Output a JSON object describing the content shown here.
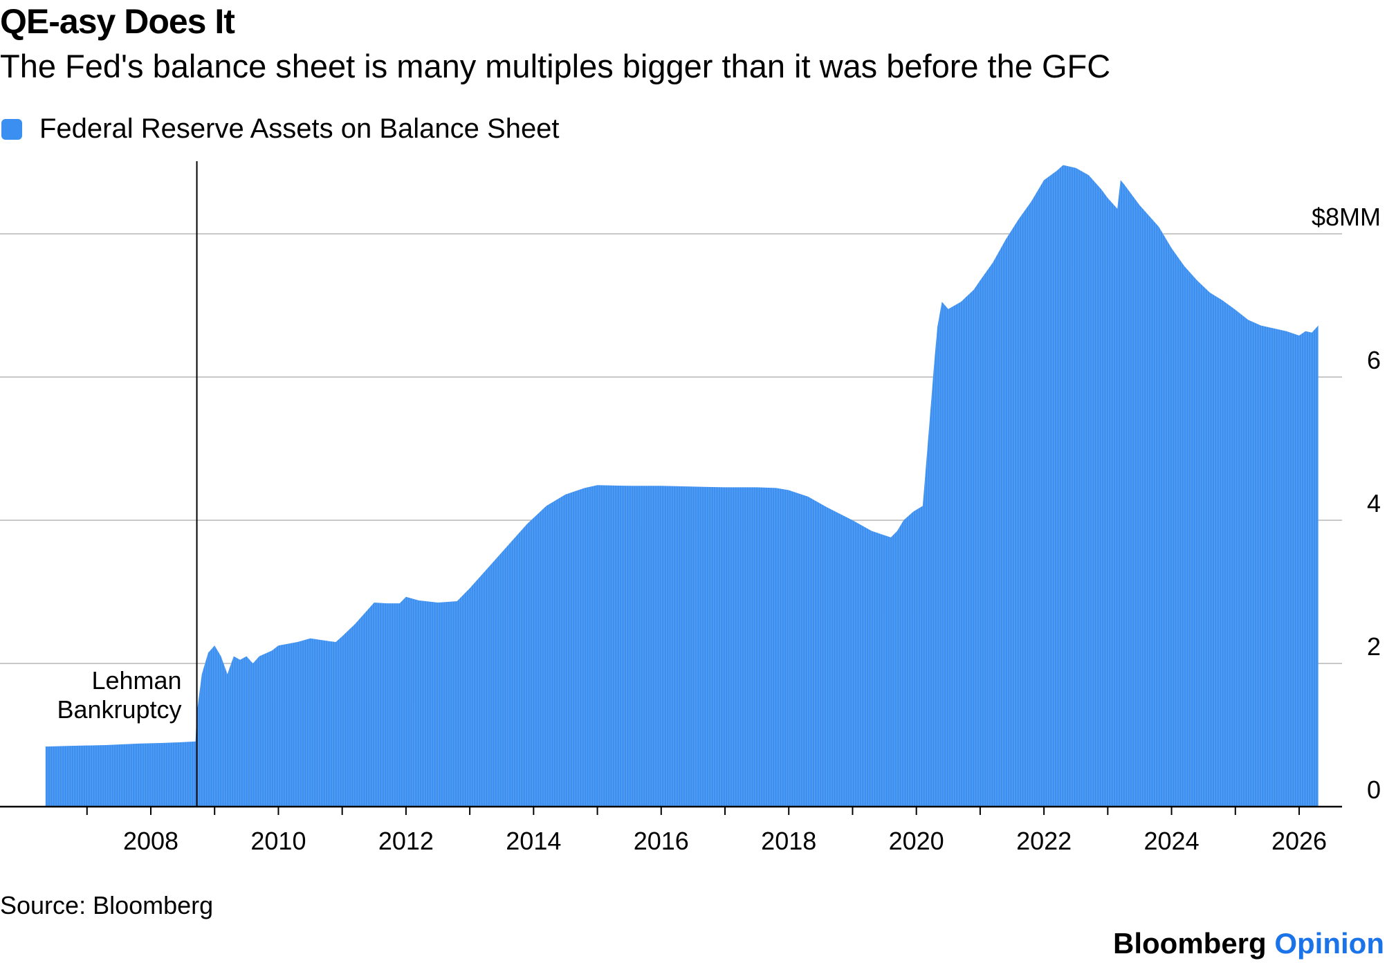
{
  "header": {
    "title": "QE-asy Does It",
    "subtitle": "The Fed's balance sheet is many multiples bigger than it was before the GFC"
  },
  "footer": {
    "source": "Source: Bloomberg",
    "brand_name": "Bloomberg",
    "brand_section": "Opinion"
  },
  "colors": {
    "series": "#3b8ff0",
    "brand_accent": "#1a73e8"
  },
  "chart_data": {
    "type": "area",
    "title": "QE-asy Does It",
    "subtitle": "The Fed's balance sheet is many multiples bigger than it was before the GFC",
    "xlabel": "",
    "ylabel": "",
    "xlim": [
      2006.2,
      2027.3
    ],
    "ylim": [
      0,
      9
    ],
    "grid": true,
    "legend": "top-left",
    "x_ticks": [
      {
        "value": 2008,
        "label": "2008"
      },
      {
        "value": 2010,
        "label": "2010"
      },
      {
        "value": 2012,
        "label": "2012"
      },
      {
        "value": 2014,
        "label": "2014"
      },
      {
        "value": 2016,
        "label": "2016"
      },
      {
        "value": 2018,
        "label": "2018"
      },
      {
        "value": 2020,
        "label": "2020"
      },
      {
        "value": 2022,
        "label": "2022"
      },
      {
        "value": 2024,
        "label": "2024"
      },
      {
        "value": 2026,
        "label": "2026"
      }
    ],
    "x_minor_ticks": [
      2007,
      2009,
      2011,
      2013,
      2015,
      2017,
      2019,
      2021,
      2023,
      2025
    ],
    "y_ticks": [
      {
        "value": 0,
        "label": "0"
      },
      {
        "value": 2,
        "label": "2"
      },
      {
        "value": 4,
        "label": "4"
      },
      {
        "value": 6,
        "label": "6"
      },
      {
        "value": 8,
        "label": "$8MM"
      }
    ],
    "annotations": [
      {
        "x": 2008.7,
        "lines": [
          "Lehman",
          "Bankruptcy"
        ]
      }
    ],
    "series": [
      {
        "name": "Federal Reserve Assets on Balance Sheet",
        "points": [
          [
            2006.35,
            0.84
          ],
          [
            2006.8,
            0.85
          ],
          [
            2007.3,
            0.86
          ],
          [
            2007.8,
            0.88
          ],
          [
            2008.2,
            0.89
          ],
          [
            2008.5,
            0.9
          ],
          [
            2008.7,
            0.91
          ],
          [
            2008.72,
            1.3
          ],
          [
            2008.8,
            1.85
          ],
          [
            2008.9,
            2.15
          ],
          [
            2009.0,
            2.25
          ],
          [
            2009.1,
            2.1
          ],
          [
            2009.2,
            1.85
          ],
          [
            2009.3,
            2.1
          ],
          [
            2009.4,
            2.05
          ],
          [
            2009.5,
            2.1
          ],
          [
            2009.6,
            2.0
          ],
          [
            2009.7,
            2.1
          ],
          [
            2009.9,
            2.18
          ],
          [
            2010.0,
            2.25
          ],
          [
            2010.3,
            2.3
          ],
          [
            2010.5,
            2.35
          ],
          [
            2010.8,
            2.31
          ],
          [
            2010.9,
            2.3
          ],
          [
            2011.0,
            2.38
          ],
          [
            2011.2,
            2.55
          ],
          [
            2011.4,
            2.75
          ],
          [
            2011.5,
            2.85
          ],
          [
            2011.7,
            2.84
          ],
          [
            2011.9,
            2.84
          ],
          [
            2012.0,
            2.93
          ],
          [
            2012.2,
            2.88
          ],
          [
            2012.5,
            2.85
          ],
          [
            2012.8,
            2.87
          ],
          [
            2013.0,
            3.05
          ],
          [
            2013.3,
            3.35
          ],
          [
            2013.6,
            3.65
          ],
          [
            2013.9,
            3.95
          ],
          [
            2014.2,
            4.2
          ],
          [
            2014.5,
            4.36
          ],
          [
            2014.8,
            4.45
          ],
          [
            2015.0,
            4.49
          ],
          [
            2015.5,
            4.48
          ],
          [
            2016.0,
            4.48
          ],
          [
            2016.5,
            4.47
          ],
          [
            2017.0,
            4.46
          ],
          [
            2017.5,
            4.46
          ],
          [
            2017.8,
            4.45
          ],
          [
            2018.0,
            4.42
          ],
          [
            2018.3,
            4.33
          ],
          [
            2018.6,
            4.18
          ],
          [
            2019.0,
            4.0
          ],
          [
            2019.3,
            3.85
          ],
          [
            2019.6,
            3.76
          ],
          [
            2019.7,
            3.85
          ],
          [
            2019.8,
            4.0
          ],
          [
            2019.95,
            4.12
          ],
          [
            2020.1,
            4.2
          ],
          [
            2020.2,
            5.3
          ],
          [
            2020.28,
            6.2
          ],
          [
            2020.33,
            6.7
          ],
          [
            2020.4,
            7.05
          ],
          [
            2020.5,
            6.95
          ],
          [
            2020.7,
            7.05
          ],
          [
            2020.9,
            7.22
          ],
          [
            2021.0,
            7.35
          ],
          [
            2021.2,
            7.6
          ],
          [
            2021.4,
            7.92
          ],
          [
            2021.6,
            8.2
          ],
          [
            2021.8,
            8.45
          ],
          [
            2022.0,
            8.75
          ],
          [
            2022.2,
            8.88
          ],
          [
            2022.3,
            8.96
          ],
          [
            2022.5,
            8.92
          ],
          [
            2022.7,
            8.82
          ],
          [
            2022.9,
            8.62
          ],
          [
            2023.0,
            8.5
          ],
          [
            2023.15,
            8.35
          ],
          [
            2023.2,
            8.75
          ],
          [
            2023.25,
            8.7
          ],
          [
            2023.5,
            8.4
          ],
          [
            2023.8,
            8.1
          ],
          [
            2024.0,
            7.8
          ],
          [
            2024.2,
            7.55
          ],
          [
            2024.4,
            7.35
          ],
          [
            2024.6,
            7.18
          ],
          [
            2024.8,
            7.07
          ],
          [
            2025.0,
            6.94
          ],
          [
            2025.2,
            6.8
          ],
          [
            2025.4,
            6.72
          ],
          [
            2025.6,
            6.68
          ],
          [
            2025.8,
            6.64
          ],
          [
            2026.0,
            6.58
          ],
          [
            2026.1,
            6.64
          ],
          [
            2026.2,
            6.62
          ],
          [
            2026.3,
            6.72
          ]
        ]
      }
    ]
  }
}
